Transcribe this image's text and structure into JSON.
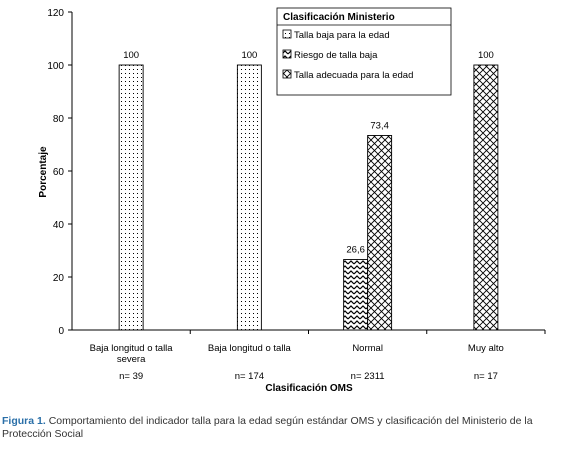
{
  "chart_data": {
    "type": "bar",
    "categories": [
      "Baja longitud o talla severa",
      "Baja longitud o talla",
      "Normal",
      "Muy alto"
    ],
    "counts": [
      "n= 39",
      "n= 174",
      "n= 2311",
      "n= 17"
    ],
    "series": [
      {
        "name": "Talla baja para la edad",
        "pattern": "dots",
        "values": [
          100,
          100,
          null,
          null
        ],
        "labels": [
          "100",
          "100",
          "",
          ""
        ]
      },
      {
        "name": "Riesgo de talla baja",
        "pattern": "zigzag",
        "values": [
          null,
          null,
          26.6,
          null
        ],
        "labels": [
          "",
          "",
          "26,6",
          ""
        ]
      },
      {
        "name": "Talla adecuada para la edad",
        "pattern": "diamond",
        "values": [
          null,
          null,
          73.4,
          100
        ],
        "labels": [
          "",
          "",
          "73,4",
          "100"
        ]
      }
    ],
    "xlabel": "Clasificación OMS",
    "ylabel": "Porcentaje",
    "ylim": [
      0,
      120
    ],
    "yticks": [
      0,
      20,
      40,
      60,
      80,
      100,
      120
    ],
    "legend_title": "Clasificación Ministerio",
    "legend_position": "top-right",
    "grid": false
  },
  "caption": {
    "figure_label": "Figura 1.",
    "text": "Comportamiento del indicador talla para la edad según estándar OMS y clasificación del Ministerio de la Protección Social"
  }
}
